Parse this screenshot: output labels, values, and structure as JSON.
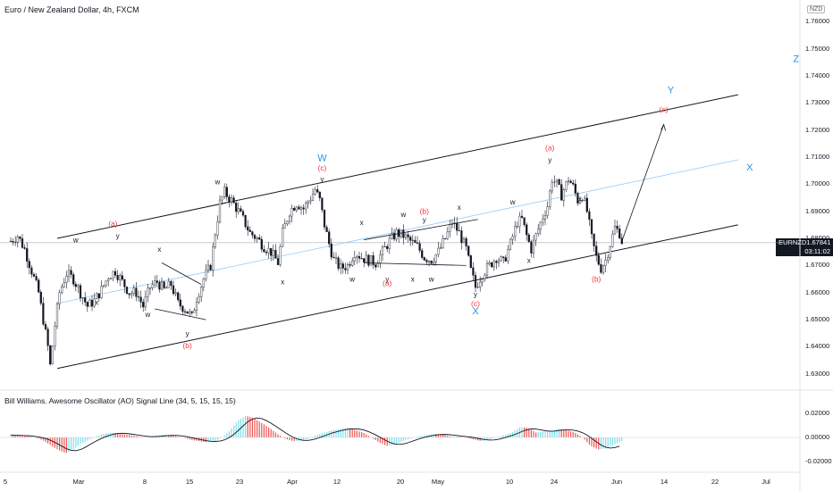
{
  "header": {
    "symbol_title": "Euro / New Zealand Dollar, 4h, FXCM",
    "currency": "NZD"
  },
  "indicator": {
    "title": "Bill Williams. Awesome Oscillator (AO) Signal Line (34, 5, 15, 15, 15)",
    "ticks": [
      "0.02000",
      "0.00000",
      "-0.02000"
    ]
  },
  "price_tag": {
    "symbol": "EURNZD",
    "price": "1.67841",
    "countdown": "03:11:02"
  },
  "colors": {
    "up": "#26a69a",
    "down": "#ef5350",
    "wave_blue": "#2196f3",
    "wave_red": "#f23645",
    "midline": "#90caf9",
    "ao_up": "#80deea",
    "ao_down": "#ef5350"
  },
  "chart_data": {
    "type": "candlestick",
    "symbol": "EURNZD",
    "timeframe": "4h",
    "ylim": [
      1.625,
      1.765
    ],
    "y_ticks": [
      "1.76000",
      "1.75000",
      "1.74000",
      "1.73000",
      "1.72000",
      "1.71000",
      "1.70000",
      "1.69000",
      "1.68000",
      "1.67000",
      "1.66000",
      "1.65000",
      "1.64000",
      "1.63000"
    ],
    "x_ticks": [
      "5",
      "Mar",
      "8",
      "15",
      "23",
      "Apr",
      "12",
      "20",
      "May",
      "10",
      "24",
      "Jun",
      "14",
      "22",
      "Jul",
      "12"
    ],
    "last_price": 1.67841,
    "close_path": [
      [
        0,
        1.679
      ],
      [
        3,
        1.681
      ],
      [
        6,
        1.676
      ],
      [
        9,
        1.668
      ],
      [
        12,
        1.66
      ],
      [
        14,
        1.65
      ],
      [
        16,
        1.64
      ],
      [
        17,
        1.633
      ],
      [
        19,
        1.648
      ],
      [
        21,
        1.66
      ],
      [
        24,
        1.667
      ],
      [
        27,
        1.665
      ],
      [
        30,
        1.66
      ],
      [
        33,
        1.655
      ],
      [
        36,
        1.657
      ],
      [
        39,
        1.661
      ],
      [
        42,
        1.666
      ],
      [
        45,
        1.668
      ],
      [
        48,
        1.664
      ],
      [
        51,
        1.66
      ],
      [
        54,
        1.66
      ],
      [
        57,
        1.655
      ],
      [
        60,
        1.662
      ],
      [
        63,
        1.664
      ],
      [
        66,
        1.661
      ],
      [
        69,
        1.663
      ],
      [
        72,
        1.656
      ],
      [
        75,
        1.654
      ],
      [
        78,
        1.651
      ],
      [
        80,
        1.658
      ],
      [
        83,
        1.665
      ],
      [
        86,
        1.67
      ],
      [
        88,
        1.682
      ],
      [
        90,
        1.693
      ],
      [
        92,
        1.697
      ],
      [
        95,
        1.694
      ],
      [
        98,
        1.69
      ],
      [
        100,
        1.687
      ],
      [
        103,
        1.682
      ],
      [
        106,
        1.68
      ],
      [
        109,
        1.677
      ],
      [
        112,
        1.675
      ],
      [
        115,
        1.671
      ],
      [
        117,
        1.682
      ],
      [
        120,
        1.69
      ],
      [
        123,
        1.693
      ],
      [
        126,
        1.691
      ],
      [
        129,
        1.695
      ],
      [
        131,
        1.698
      ],
      [
        133,
        1.694
      ],
      [
        135,
        1.685
      ],
      [
        137,
        1.678
      ],
      [
        139,
        1.672
      ],
      [
        142,
        1.669
      ],
      [
        145,
        1.67
      ],
      [
        148,
        1.675
      ],
      [
        151,
        1.673
      ],
      [
        154,
        1.672
      ],
      [
        157,
        1.671
      ],
      [
        160,
        1.675
      ],
      [
        163,
        1.679
      ],
      [
        166,
        1.682
      ],
      [
        169,
        1.681
      ],
      [
        172,
        1.679
      ],
      [
        175,
        1.677
      ],
      [
        178,
        1.673
      ],
      [
        181,
        1.672
      ],
      [
        184,
        1.675
      ],
      [
        187,
        1.68
      ],
      [
        190,
        1.686
      ],
      [
        193,
        1.682
      ],
      [
        196,
        1.676
      ],
      [
        198,
        1.668
      ],
      [
        200,
        1.662
      ],
      [
        203,
        1.667
      ],
      [
        206,
        1.67
      ],
      [
        209,
        1.673
      ],
      [
        212,
        1.671
      ],
      [
        215,
        1.678
      ],
      [
        218,
        1.686
      ],
      [
        220,
        1.687
      ],
      [
        222,
        1.681
      ],
      [
        224,
        1.676
      ],
      [
        226,
        1.681
      ],
      [
        229,
        1.688
      ],
      [
        231,
        1.692
      ],
      [
        233,
        1.702
      ],
      [
        235,
        1.7
      ],
      [
        237,
        1.696
      ],
      [
        240,
        1.702
      ],
      [
        242,
        1.699
      ],
      [
        244,
        1.694
      ],
      [
        246,
        1.696
      ],
      [
        248,
        1.69
      ],
      [
        250,
        1.68
      ],
      [
        252,
        1.673
      ],
      [
        254,
        1.669
      ],
      [
        256,
        1.672
      ],
      [
        258,
        1.678
      ],
      [
        260,
        1.684
      ],
      [
        262,
        1.682
      ],
      [
        263,
        1.679
      ]
    ],
    "channel": {
      "upper": [
        [
          20,
          1.68
        ],
        [
          313,
          1.733
        ]
      ],
      "lower": [
        [
          20,
          1.632
        ],
        [
          313,
          1.685
        ]
      ],
      "middle": [
        [
          20,
          1.656
        ],
        [
          313,
          1.709
        ]
      ]
    },
    "projection": [
      [
        263,
        1.679
      ],
      [
        281,
        1.722
      ]
    ],
    "wave_labels": [
      {
        "t": "W",
        "color": "blue",
        "x": 134,
        "y": 1.7085
      },
      {
        "t": "X",
        "color": "blue",
        "x": 200,
        "y": 1.652
      },
      {
        "t": "Y",
        "color": "blue",
        "x": 284,
        "y": 1.7335
      },
      {
        "t": "Z",
        "color": "blue",
        "x": 338,
        "y": 1.745
      },
      {
        "t": "X",
        "color": "blue",
        "x": 318,
        "y": 1.705
      },
      {
        "t": "(a)",
        "color": "red",
        "x": 44,
        "y": 1.6845
      },
      {
        "t": "(b)",
        "color": "red",
        "x": 76,
        "y": 1.6395
      },
      {
        "t": "(c)",
        "color": "red",
        "x": 134,
        "y": 1.705
      },
      {
        "t": "(b)",
        "color": "red",
        "x": 178,
        "y": 1.689
      },
      {
        "t": "(a)",
        "color": "red",
        "x": 162,
        "y": 1.6625
      },
      {
        "t": "(c)",
        "color": "red",
        "x": 200,
        "y": 1.655
      },
      {
        "t": "(a)",
        "color": "red",
        "x": 232,
        "y": 1.7125
      },
      {
        "t": "(b)",
        "color": "red",
        "x": 252,
        "y": 1.664
      },
      {
        "t": "(c)",
        "color": "red",
        "x": 281,
        "y": 1.7267
      }
    ],
    "small_labels": [
      {
        "t": "w",
        "x": 28,
        "y": 1.6785
      },
      {
        "t": "y",
        "x": 46,
        "y": 1.68
      },
      {
        "t": "x",
        "x": 37,
        "y": 1.6555
      },
      {
        "t": "x",
        "x": 64,
        "y": 1.675
      },
      {
        "t": "w",
        "x": 59,
        "y": 1.651
      },
      {
        "t": "y",
        "x": 76,
        "y": 1.644
      },
      {
        "t": "w",
        "x": 89,
        "y": 1.7
      },
      {
        "t": "x",
        "x": 117,
        "y": 1.663
      },
      {
        "t": "y",
        "x": 134,
        "y": 1.701
      },
      {
        "t": "x",
        "x": 151,
        "y": 1.685
      },
      {
        "t": "w",
        "x": 147,
        "y": 1.664
      },
      {
        "t": "y",
        "x": 162,
        "y": 1.664
      },
      {
        "t": "w",
        "x": 169,
        "y": 1.688
      },
      {
        "t": "x",
        "x": 173,
        "y": 1.664
      },
      {
        "t": "y",
        "x": 178,
        "y": 1.686
      },
      {
        "t": "w",
        "x": 181,
        "y": 1.664
      },
      {
        "t": "x",
        "x": 193,
        "y": 1.6905
      },
      {
        "t": "y",
        "x": 200,
        "y": 1.6585
      },
      {
        "t": "w",
        "x": 216,
        "y": 1.6925
      },
      {
        "t": "x",
        "x": 223,
        "y": 1.671
      },
      {
        "t": "y",
        "x": 232,
        "y": 1.708
      },
      {
        "t": "x",
        "x": 245,
        "y": 1.6935
      }
    ],
    "triangles": [
      {
        "pts": [
          [
            65,
            1.671
          ],
          [
            82,
            1.663
          ]
        ]
      },
      {
        "pts": [
          [
            62,
            1.654
          ],
          [
            84,
            1.65
          ]
        ]
      },
      {
        "pts": [
          [
            152,
            1.6795
          ],
          [
            201,
            1.687
          ]
        ]
      },
      {
        "pts": [
          [
            152,
            1.671
          ],
          [
            196,
            1.67
          ]
        ]
      }
    ],
    "awesome_oscillator": {
      "ylim": [
        -0.028,
        0.028
      ],
      "values": [
        0.002,
        0.0015,
        0.001,
        0.0,
        -0.002,
        -0.006,
        -0.01,
        -0.013,
        -0.01,
        -0.005,
        -0.002,
        0.001,
        0.0035,
        0.004,
        0.003,
        0.002,
        0.001,
        0.0,
        0.001,
        0.002,
        0.002,
        0.001,
        0.0,
        -0.002,
        -0.003,
        -0.004,
        -0.003,
        0.0,
        0.006,
        0.014,
        0.018,
        0.016,
        0.012,
        0.008,
        0.003,
        -0.001,
        -0.003,
        -0.003,
        -0.001,
        0.002,
        0.004,
        0.006,
        0.007,
        0.008,
        0.006,
        0.004,
        0.0,
        -0.004,
        -0.007,
        -0.006,
        -0.003,
        -0.001,
        0.001,
        0.002,
        0.003,
        0.0025,
        0.001,
        0.001,
        0.0,
        -0.0015,
        -0.003,
        -0.002,
        0.0,
        0.002,
        0.004,
        0.0085,
        0.008,
        0.004,
        0.005,
        0.006,
        0.007,
        0.006,
        0.004,
        0.0,
        -0.007,
        -0.01,
        -0.009,
        -0.006,
        -0.003
      ]
    }
  }
}
